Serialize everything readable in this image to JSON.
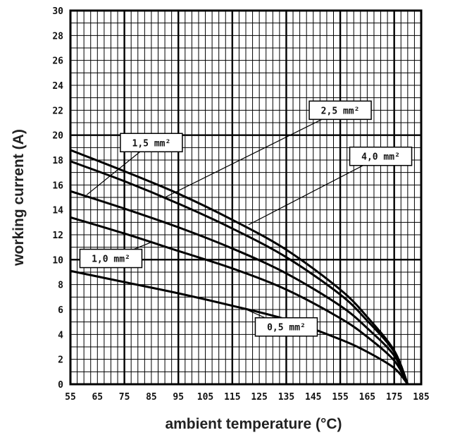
{
  "chart_data": {
    "type": "line",
    "xlabel": "ambient temperature (°C)",
    "ylabel": "working current (A)",
    "xlim": [
      55,
      185
    ],
    "ylim": [
      0,
      30
    ],
    "x_ticks": [
      "55",
      "65",
      "75",
      "85",
      "95",
      "105",
      "115",
      "125",
      "135",
      "145",
      "155",
      "165",
      "175",
      "185"
    ],
    "y_ticks": [
      "0",
      "2",
      "4",
      "6",
      "8",
      "10",
      "12",
      "14",
      "16",
      "18",
      "20",
      "22",
      "24",
      "26",
      "28",
      "30"
    ],
    "grid": "on",
    "series": [
      {
        "name": "0,5 mm²",
        "x": [
          55,
          75,
          95,
          115,
          135,
          155,
          165,
          175,
          180
        ],
        "y": [
          9.1,
          8.2,
          7.3,
          6.3,
          5.2,
          3.6,
          2.6,
          1.3,
          0.0
        ]
      },
      {
        "name": "1,0 mm²",
        "x": [
          55,
          75,
          95,
          115,
          135,
          155,
          165,
          175,
          180
        ],
        "y": [
          13.4,
          12.1,
          10.7,
          9.3,
          7.6,
          5.3,
          3.8,
          1.9,
          0.0
        ]
      },
      {
        "name": "1,5 mm²",
        "x": [
          55,
          75,
          95,
          115,
          135,
          155,
          165,
          175,
          180
        ],
        "y": [
          15.5,
          14.1,
          12.6,
          10.9,
          8.9,
          6.3,
          4.5,
          2.3,
          0.0
        ]
      },
      {
        "name": "2,5 mm²",
        "x": [
          55,
          75,
          95,
          115,
          135,
          155,
          165,
          175,
          180
        ],
        "y": [
          17.9,
          16.3,
          14.5,
          12.5,
          10.2,
          7.2,
          5.1,
          2.6,
          0.0
        ]
      },
      {
        "name": "4,0 mm²",
        "x": [
          55,
          75,
          95,
          115,
          135,
          155,
          165,
          175,
          180
        ],
        "y": [
          18.8,
          17.1,
          15.3,
          13.2,
          10.8,
          7.6,
          5.4,
          2.7,
          0.0
        ]
      }
    ],
    "annotations": [
      {
        "text": "0,5 mm²",
        "series": "0,5 mm²",
        "box_at": [
          135,
          4.6
        ],
        "points_to": [
          118,
          6.2
        ]
      },
      {
        "text": "1,0 mm²",
        "series": "1,0 mm²",
        "box_at": [
          70,
          10.1
        ],
        "points_to": [
          85,
          11.4
        ]
      },
      {
        "text": "1,5 mm²",
        "series": "1,5 mm²",
        "box_at": [
          85,
          19.4
        ],
        "points_to": [
          61,
          15.2
        ]
      },
      {
        "text": "2,5 mm²",
        "series": "2,5 mm²",
        "box_at": [
          155,
          22.0
        ],
        "points_to": [
          90,
          15.0
        ]
      },
      {
        "text": "4,0 mm²",
        "series": "4,0 mm²",
        "box_at": [
          170,
          18.3
        ],
        "points_to": [
          121,
          12.8
        ]
      }
    ]
  }
}
